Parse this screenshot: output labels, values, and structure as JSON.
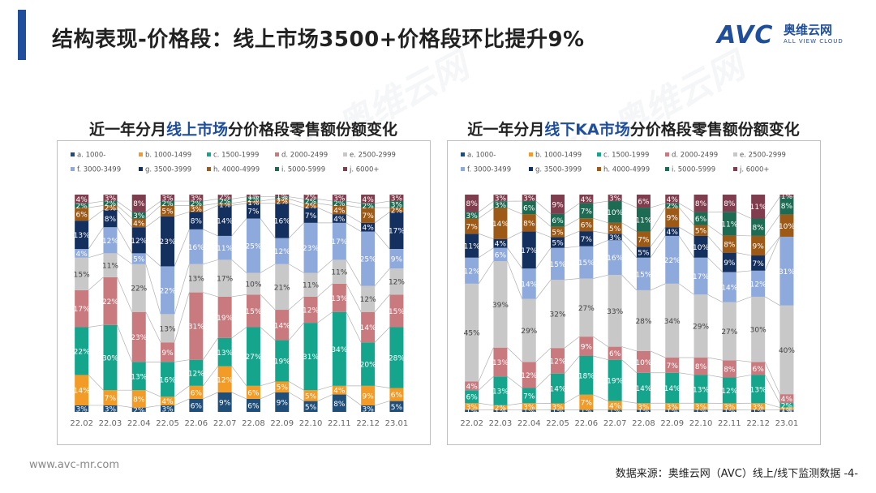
{
  "header": {
    "title": "结构表现-价格段：线上市场3500+价格段环比提升9%",
    "logo_avc": "AVC",
    "logo_cn": "奥维云网",
    "logo_en": "ALL VIEW CLOUD"
  },
  "footer": {
    "url": "www.avc-mr.com",
    "source": "数据来源：奥维云网（AVC）线上/线下监测数据 -4-"
  },
  "watermark": {
    "text": "AVC 奥维云网",
    "sub": "ALL VIEW CLOUD"
  },
  "colors": {
    "a": "#1f4e79",
    "b": "#f29b26",
    "c": "#15a58c",
    "d": "#c97a7e",
    "e": "#c8c8c8",
    "f": "#8ea9db",
    "g": "#14305e",
    "h": "#9c5a16",
    "i": "#1c6b52",
    "j": "#7f3d4d",
    "accent": "#1f4e9c"
  },
  "chart_data": [
    {
      "type": "bar",
      "stacked": true,
      "normalized": true,
      "title_parts": [
        "近一年分月",
        "线上市场",
        "分价格段零售额份额变化"
      ],
      "categories": [
        "22.02",
        "22.03",
        "22.04",
        "22.05",
        "22.06",
        "22.07",
        "22.08",
        "22.09",
        "22.10",
        "22.11",
        "22.12",
        "23.01"
      ],
      "series": [
        {
          "key": "a",
          "name": "a. 1000-",
          "values": [
            3,
            3,
            2,
            3,
            6,
            9,
            6,
            9,
            5,
            8,
            3,
            5
          ]
        },
        {
          "key": "b",
          "name": "b. 1000-1499",
          "values": [
            14,
            7,
            8,
            4,
            6,
            12,
            6,
            5,
            5,
            4,
            9,
            6
          ]
        },
        {
          "key": "c",
          "name": "c. 1500-1999",
          "values": [
            22,
            30,
            13,
            16,
            12,
            13,
            27,
            19,
            31,
            34,
            20,
            28
          ]
        },
        {
          "key": "d",
          "name": "d. 2000-2499",
          "values": [
            17,
            22,
            23,
            9,
            31,
            19,
            15,
            14,
            12,
            13,
            14,
            15
          ]
        },
        {
          "key": "e",
          "name": "e. 2500-2999",
          "values": [
            15,
            11,
            22,
            13,
            13,
            17,
            10,
            21,
            11,
            11,
            12,
            12
          ]
        },
        {
          "key": "f",
          "name": "f. 3000-3499",
          "values": [
            4,
            12,
            5,
            22,
            16,
            11,
            25,
            12,
            23,
            17,
            25,
            9
          ]
        },
        {
          "key": "g",
          "name": "g. 3500-3999",
          "values": [
            13,
            8,
            12,
            23,
            8,
            14,
            7,
            16,
            7,
            4,
            4,
            17
          ]
        },
        {
          "key": "h",
          "name": "h. 4000-4999",
          "values": [
            6,
            2,
            4,
            5,
            3,
            1,
            1,
            2,
            2,
            4,
            7,
            2
          ]
        },
        {
          "key": "i",
          "name": "i. 5000-5999",
          "values": [
            2,
            2,
            3,
            2,
            2,
            2,
            2,
            1,
            2,
            2,
            2,
            3
          ]
        },
        {
          "key": "j",
          "name": "j. 6000+",
          "values": [
            4,
            3,
            8,
            3,
            3,
            2,
            1,
            1,
            2,
            3,
            4,
            3
          ]
        }
      ],
      "ylim": [
        0,
        100
      ],
      "legend": "top"
    },
    {
      "type": "bar",
      "stacked": true,
      "normalized": true,
      "title_parts": [
        "近一年分月",
        "线下KA市场",
        "分价格段零售额份额变化"
      ],
      "categories": [
        "22.02",
        "22.03",
        "22.04",
        "22.05",
        "22.06",
        "22.07",
        "22.08",
        "22.09",
        "22.10",
        "22.11",
        "22.12",
        "23.01"
      ],
      "series": [
        {
          "key": "a",
          "name": "a. 1000-",
          "values": [
            1,
            1,
            1,
            1,
            1,
            1,
            1,
            1,
            1,
            1,
            1,
            1
          ]
        },
        {
          "key": "b",
          "name": "b. 1000-1499",
          "values": [
            3,
            2,
            3,
            3,
            7,
            4,
            3,
            3,
            3,
            3,
            3,
            1
          ]
        },
        {
          "key": "c",
          "name": "c. 1500-1999",
          "values": [
            6,
            13,
            7,
            14,
            18,
            19,
            14,
            14,
            13,
            12,
            13,
            2
          ]
        },
        {
          "key": "d",
          "name": "d. 2000-2499",
          "values": [
            4,
            13,
            12,
            12,
            9,
            6,
            10,
            7,
            8,
            8,
            6,
            4
          ]
        },
        {
          "key": "e",
          "name": "e. 2500-2999",
          "values": [
            45,
            39,
            29,
            32,
            27,
            33,
            28,
            34,
            29,
            27,
            30,
            40
          ]
        },
        {
          "key": "f",
          "name": "f. 3000-3499",
          "values": [
            12,
            6,
            14,
            15,
            15,
            16,
            15,
            22,
            17,
            14,
            12,
            31
          ]
        },
        {
          "key": "g",
          "name": "g. 3500-3999",
          "values": [
            11,
            4,
            17,
            5,
            7,
            3,
            5,
            4,
            10,
            9,
            7,
            0
          ]
        },
        {
          "key": "h",
          "name": "h. 4000-4999",
          "values": [
            7,
            14,
            8,
            5,
            6,
            5,
            7,
            9,
            5,
            8,
            9,
            10
          ]
        },
        {
          "key": "i",
          "name": "i. 5000-5999",
          "values": [
            3,
            3,
            6,
            6,
            7,
            10,
            11,
            2,
            6,
            11,
            8,
            8
          ]
        },
        {
          "key": "j",
          "name": "j. 6000+",
          "values": [
            8,
            3,
            3,
            9,
            4,
            3,
            6,
            4,
            8,
            8,
            11,
            1
          ]
        }
      ],
      "ylim": [
        0,
        100
      ],
      "legend": "top"
    }
  ]
}
